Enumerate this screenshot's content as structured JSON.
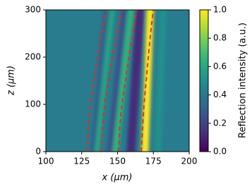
{
  "chart_data": {
    "type": "heatmap",
    "xlabel": "x (μm)",
    "ylabel": "z (μm)",
    "xlim": [
      100,
      200
    ],
    "xticks": [
      100,
      125,
      150,
      175,
      200
    ],
    "ylim": [
      0,
      300
    ],
    "yticks": [
      0,
      100,
      200,
      300
    ],
    "colorbar_label": "Reflection intensity (a.u.)",
    "clim": [
      0,
      1
    ],
    "cticks": [
      {
        "value": 0,
        "label": "0.0"
      },
      {
        "value": 0.2,
        "label": "0.2"
      },
      {
        "value": 0.4,
        "label": "0.4"
      },
      {
        "value": 0.6,
        "label": "0.6"
      },
      {
        "value": 0.8,
        "label": "0.8"
      },
      {
        "value": 1,
        "label": "1.0"
      }
    ],
    "colormap": "viridis",
    "background_intensity": 0.42,
    "bands": [
      {
        "z": [
          0,
          300
        ],
        "x": [
          132,
          142
        ],
        "width": 3,
        "intensity": 0.3
      },
      {
        "z": [
          0,
          300
        ],
        "x": [
          135,
          147
        ],
        "width": 3,
        "intensity": 0.6
      },
      {
        "z": [
          0,
          300
        ],
        "x": [
          144,
          155
        ],
        "width": 4,
        "intensity": 0.25
      },
      {
        "z": [
          0,
          300
        ],
        "x": [
          148,
          160
        ],
        "width": 4,
        "intensity": 0.65
      },
      {
        "z": [
          0,
          300
        ],
        "x": [
          159,
          166
        ],
        "width": 6,
        "intensity": 0.12
      },
      {
        "z": [
          0,
          300
        ],
        "x": [
          169,
          173
        ],
        "width": 5,
        "intensity": 1.0
      },
      {
        "z": [
          0,
          300
        ],
        "x": [
          178,
          182
        ],
        "width": 5,
        "intensity": 0.5
      }
    ],
    "line_color": "#e8291c",
    "series": [
      {
        "z": [
          0,
          50,
          100,
          150,
          200,
          250,
          300
        ],
        "x": [
          128.6,
          129.5,
          131,
          133.5,
          136,
          139,
          142
        ]
      },
      {
        "z": [
          0,
          50,
          100,
          150,
          200,
          250,
          300
        ],
        "x": [
          138.4,
          139.5,
          141,
          143.5,
          146.5,
          149.5,
          153
        ]
      },
      {
        "z": [
          0,
          50,
          100,
          150,
          200,
          250,
          300
        ],
        "x": [
          150.7,
          151.5,
          153,
          155.5,
          158,
          160.5,
          163.5
        ]
      },
      {
        "z": [
          0,
          50,
          100,
          150,
          200,
          250,
          300
        ],
        "x": [
          166.5,
          167.5,
          168.5,
          170,
          171.5,
          173,
          175
        ]
      }
    ]
  }
}
